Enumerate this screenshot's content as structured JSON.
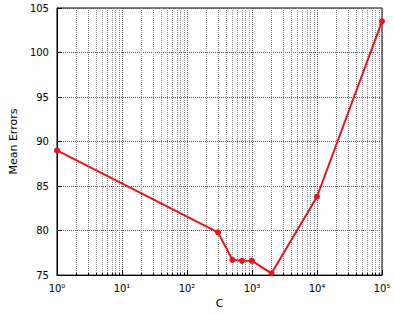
{
  "chart_data": {
    "type": "line",
    "x_label": "C",
    "y_label": "Mean Errors",
    "x": [
      1,
      300,
      500,
      700,
      1000,
      2000,
      10000,
      100000
    ],
    "values": [
      89,
      79.8,
      76.7,
      76.6,
      76.6,
      75.2,
      83.8,
      103.5
    ],
    "color": "#e8141b",
    "marker": "circle",
    "log": "x",
    "grid": true,
    "xlim": [
      1,
      100000
    ],
    "xticks": [
      {
        "value": 1,
        "label": "10⁰"
      },
      {
        "value": 10,
        "label": "10¹"
      },
      {
        "value": 100,
        "label": "10²"
      },
      {
        "value": 1000,
        "label": "10³"
      },
      {
        "value": 10000,
        "label": "10⁴"
      },
      {
        "value": 100000,
        "label": "10⁵"
      }
    ],
    "ylim": [
      75,
      105
    ],
    "yticks": [
      75,
      80,
      85,
      90,
      95,
      100,
      105
    ]
  }
}
